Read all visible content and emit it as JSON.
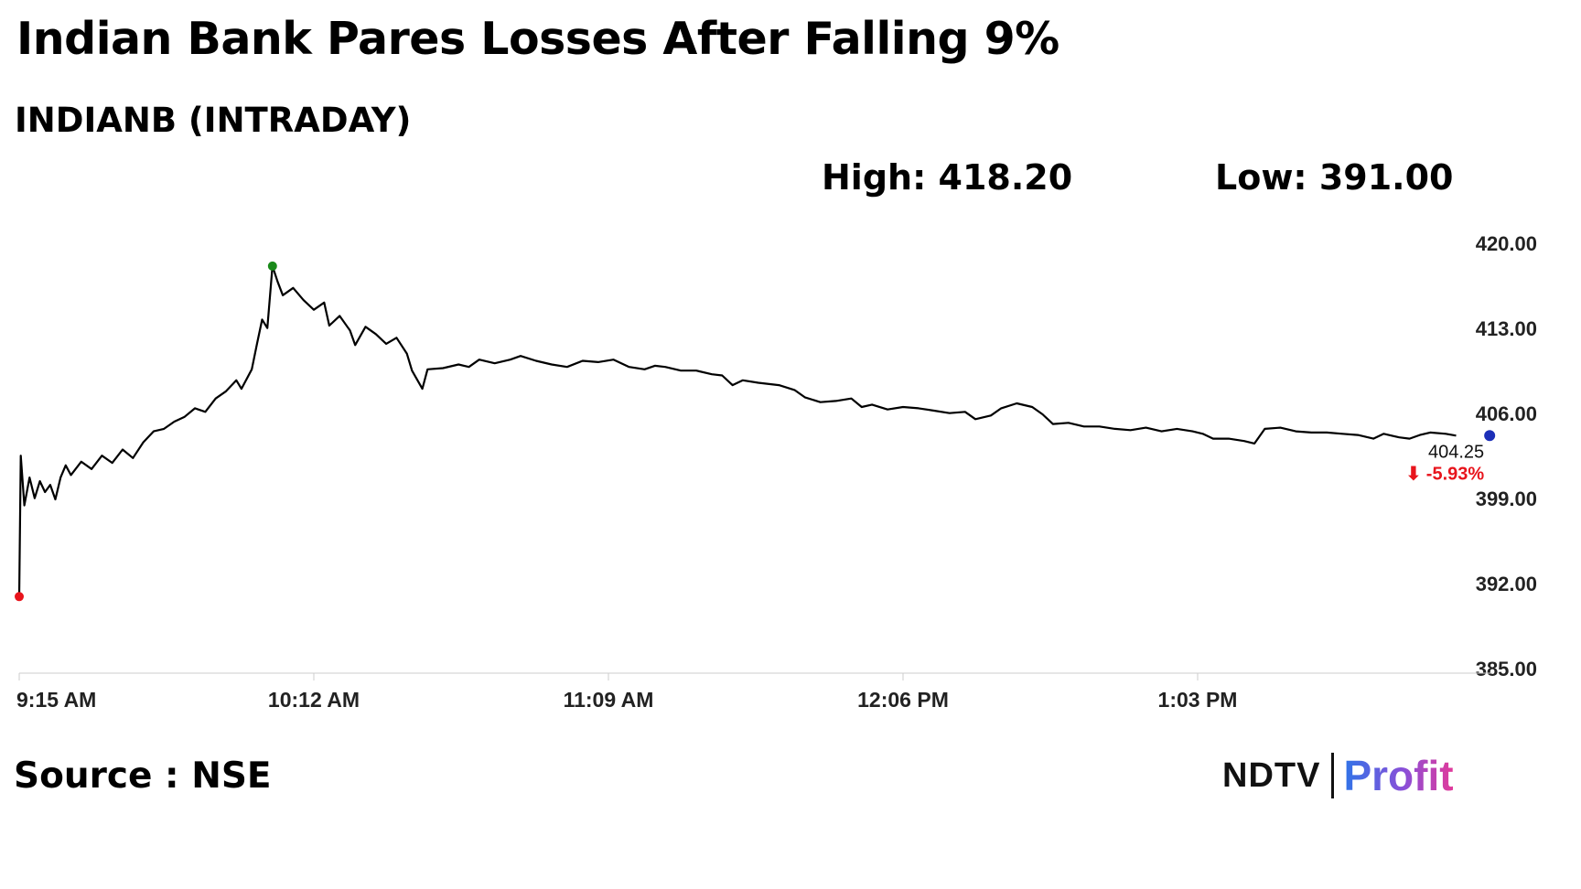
{
  "header": {
    "title": "Indian Bank Pares Losses After Falling 9%",
    "subtitle": "INDIANB (INTRADAY)",
    "high_label": "High: 418.20",
    "low_label": "Low: 391.00"
  },
  "footer": {
    "source": "Source : NSE",
    "logo_left": "NDTV",
    "logo_right": "Profit"
  },
  "colors": {
    "line": "#000000",
    "high_marker": "#1a8a1a",
    "low_marker": "#e8141c",
    "last_marker": "#1c2fb8",
    "change_text": "#e8141c",
    "axis": "#cccccc"
  },
  "chart_data": {
    "type": "line",
    "y_ticks": [
      "420.00",
      "413.00",
      "406.00",
      "399.00",
      "392.00",
      "385.00"
    ],
    "ylim": [
      385,
      420
    ],
    "x_ticks": [
      "9:15 AM",
      "10:12 AM",
      "11:09 AM",
      "12:06 PM",
      "1:03 PM"
    ],
    "x_tick_minutes": [
      0,
      57,
      114,
      171,
      228
    ],
    "xlim_minutes": [
      0,
      285
    ],
    "series": [
      {
        "points": [
          [
            0,
            391.0
          ],
          [
            0.3,
            402.6
          ],
          [
            1,
            398.5
          ],
          [
            2,
            400.8
          ],
          [
            3,
            399.1
          ],
          [
            4,
            400.5
          ],
          [
            5,
            399.6
          ],
          [
            6,
            400.2
          ],
          [
            7,
            399.0
          ],
          [
            8,
            400.8
          ],
          [
            9,
            401.8
          ],
          [
            10,
            401.0
          ],
          [
            12,
            402.1
          ],
          [
            14,
            401.5
          ],
          [
            16,
            402.6
          ],
          [
            18,
            402.0
          ],
          [
            20,
            403.1
          ],
          [
            22,
            402.4
          ],
          [
            24,
            403.7
          ],
          [
            26,
            404.6
          ],
          [
            28,
            404.8
          ],
          [
            30,
            405.4
          ],
          [
            32,
            405.8
          ],
          [
            34,
            406.5
          ],
          [
            36,
            406.2
          ],
          [
            38,
            407.3
          ],
          [
            40,
            407.9
          ],
          [
            42,
            408.8
          ],
          [
            43,
            408.1
          ],
          [
            45,
            409.7
          ],
          [
            46,
            411.8
          ],
          [
            47,
            413.8
          ],
          [
            48,
            413.1
          ],
          [
            49,
            418.2
          ],
          [
            50,
            416.9
          ],
          [
            51,
            415.8
          ],
          [
            53,
            416.4
          ],
          [
            55,
            415.4
          ],
          [
            57,
            414.6
          ],
          [
            59,
            415.2
          ],
          [
            60,
            413.3
          ],
          [
            62,
            414.1
          ],
          [
            64,
            412.9
          ],
          [
            65,
            411.7
          ],
          [
            67,
            413.2
          ],
          [
            69,
            412.6
          ],
          [
            71,
            411.8
          ],
          [
            73,
            412.3
          ],
          [
            75,
            411.0
          ],
          [
            76,
            409.6
          ],
          [
            78,
            408.1
          ],
          [
            79,
            409.7
          ],
          [
            82,
            409.8
          ],
          [
            85,
            410.1
          ],
          [
            87,
            409.9
          ],
          [
            89,
            410.5
          ],
          [
            92,
            410.2
          ],
          [
            95,
            410.5
          ],
          [
            97,
            410.8
          ],
          [
            100,
            410.4
          ],
          [
            103,
            410.1
          ],
          [
            106,
            409.9
          ],
          [
            109,
            410.4
          ],
          [
            112,
            410.3
          ],
          [
            115,
            410.5
          ],
          [
            118,
            409.9
          ],
          [
            121,
            409.7
          ],
          [
            123,
            410.0
          ],
          [
            125,
            409.9
          ],
          [
            128,
            409.6
          ],
          [
            131,
            409.6
          ],
          [
            134,
            409.3
          ],
          [
            136,
            409.2
          ],
          [
            138,
            408.4
          ],
          [
            140,
            408.8
          ],
          [
            143,
            408.6
          ],
          [
            147,
            408.4
          ],
          [
            150,
            408.0
          ],
          [
            152,
            407.4
          ],
          [
            155,
            407.0
          ],
          [
            158,
            407.1
          ],
          [
            161,
            407.3
          ],
          [
            163,
            406.6
          ],
          [
            165,
            406.8
          ],
          [
            168,
            406.4
          ],
          [
            171,
            406.6
          ],
          [
            174,
            406.5
          ],
          [
            177,
            406.3
          ],
          [
            180,
            406.1
          ],
          [
            183,
            406.2
          ],
          [
            185,
            405.6
          ],
          [
            188,
            405.9
          ],
          [
            190,
            406.5
          ],
          [
            193,
            406.9
          ],
          [
            196,
            406.6
          ],
          [
            198,
            406.0
          ],
          [
            200,
            405.2
          ],
          [
            203,
            405.3
          ],
          [
            206,
            405.0
          ],
          [
            209,
            405.0
          ],
          [
            212,
            404.8
          ],
          [
            215,
            404.7
          ],
          [
            218,
            404.9
          ],
          [
            221,
            404.6
          ],
          [
            224,
            404.8
          ],
          [
            227,
            404.6
          ],
          [
            229,
            404.4
          ],
          [
            231,
            404.0
          ],
          [
            234,
            404.0
          ],
          [
            237,
            403.8
          ],
          [
            239,
            403.6
          ],
          [
            241,
            404.8
          ],
          [
            244,
            404.9
          ],
          [
            247,
            404.6
          ],
          [
            250,
            404.5
          ],
          [
            253,
            404.5
          ],
          [
            256,
            404.4
          ],
          [
            259,
            404.3
          ],
          [
            262,
            404.0
          ],
          [
            264,
            404.4
          ],
          [
            267,
            404.1
          ],
          [
            269,
            404.0
          ],
          [
            271,
            404.3
          ],
          [
            273,
            404.5
          ],
          [
            276,
            404.4
          ],
          [
            278,
            404.25
          ]
        ]
      }
    ],
    "markers": {
      "high": [
        49,
        418.2
      ],
      "low": [
        0,
        391.0
      ],
      "last": [
        284.5,
        404.25
      ]
    },
    "last_value_label": "404.25",
    "last_change_label": "⬇ -5.93%"
  }
}
